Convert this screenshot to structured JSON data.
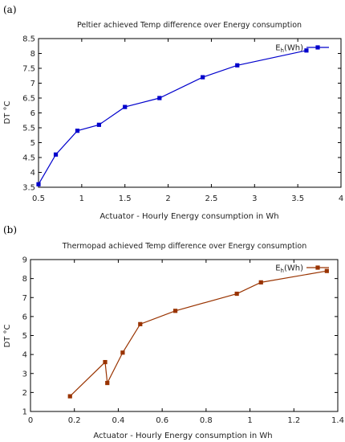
{
  "chart_data": [
    {
      "panel_label": "(a)",
      "type": "line",
      "title": "Peltier achieved Temp difference over Energy consumption",
      "xlabel": "Actuator - Hourly Energy consumption in Wh",
      "ylabel": "DT °C",
      "xlim": [
        0.5,
        4
      ],
      "ylim": [
        3.5,
        8.5
      ],
      "xticks": [
        "0.5",
        "1",
        "1.5",
        "2",
        "2.5",
        "3",
        "3.5",
        "4"
      ],
      "yticks": [
        "3.5",
        "4",
        "4.5",
        "5",
        "5.5",
        "6",
        "6.5",
        "7",
        "7.5",
        "8",
        "8.5"
      ],
      "grid": false,
      "legend_position": "top-right",
      "series": [
        {
          "name": "E_h(Wh)",
          "legend_main": "E",
          "legend_sub": "h",
          "legend_rest": "(Wh)",
          "color": "#0000cc",
          "x": [
            0.5,
            0.7,
            0.95,
            1.2,
            1.5,
            1.9,
            2.4,
            2.8,
            3.6
          ],
          "y": [
            3.6,
            4.6,
            5.4,
            5.6,
            6.2,
            6.5,
            7.2,
            7.6,
            8.1
          ]
        }
      ]
    },
    {
      "panel_label": "(b)",
      "type": "line",
      "title": "Thermopad achieved Temp difference over Energy consumption",
      "xlabel": "Actuator - Hourly Energy consumption in Wh",
      "ylabel": "DT °C",
      "xlim": [
        0,
        1.4
      ],
      "ylim": [
        1,
        9
      ],
      "xticks": [
        "0",
        "0.2",
        "0.4",
        "0.6",
        "0.8",
        "1",
        "1.2",
        "1.4"
      ],
      "yticks": [
        "1",
        "2",
        "3",
        "4",
        "5",
        "6",
        "7",
        "8",
        "9"
      ],
      "grid": false,
      "legend_position": "top-right",
      "series": [
        {
          "name": "E_h(Wh)",
          "legend_main": "E",
          "legend_sub": "h",
          "legend_rest": "(Wh)",
          "color": "#993300",
          "x": [
            0.18,
            0.34,
            0.35,
            0.42,
            0.5,
            0.66,
            0.94,
            1.05,
            1.35
          ],
          "y": [
            1.8,
            3.6,
            2.5,
            4.1,
            5.6,
            6.3,
            7.2,
            7.8,
            8.4
          ]
        }
      ]
    }
  ]
}
